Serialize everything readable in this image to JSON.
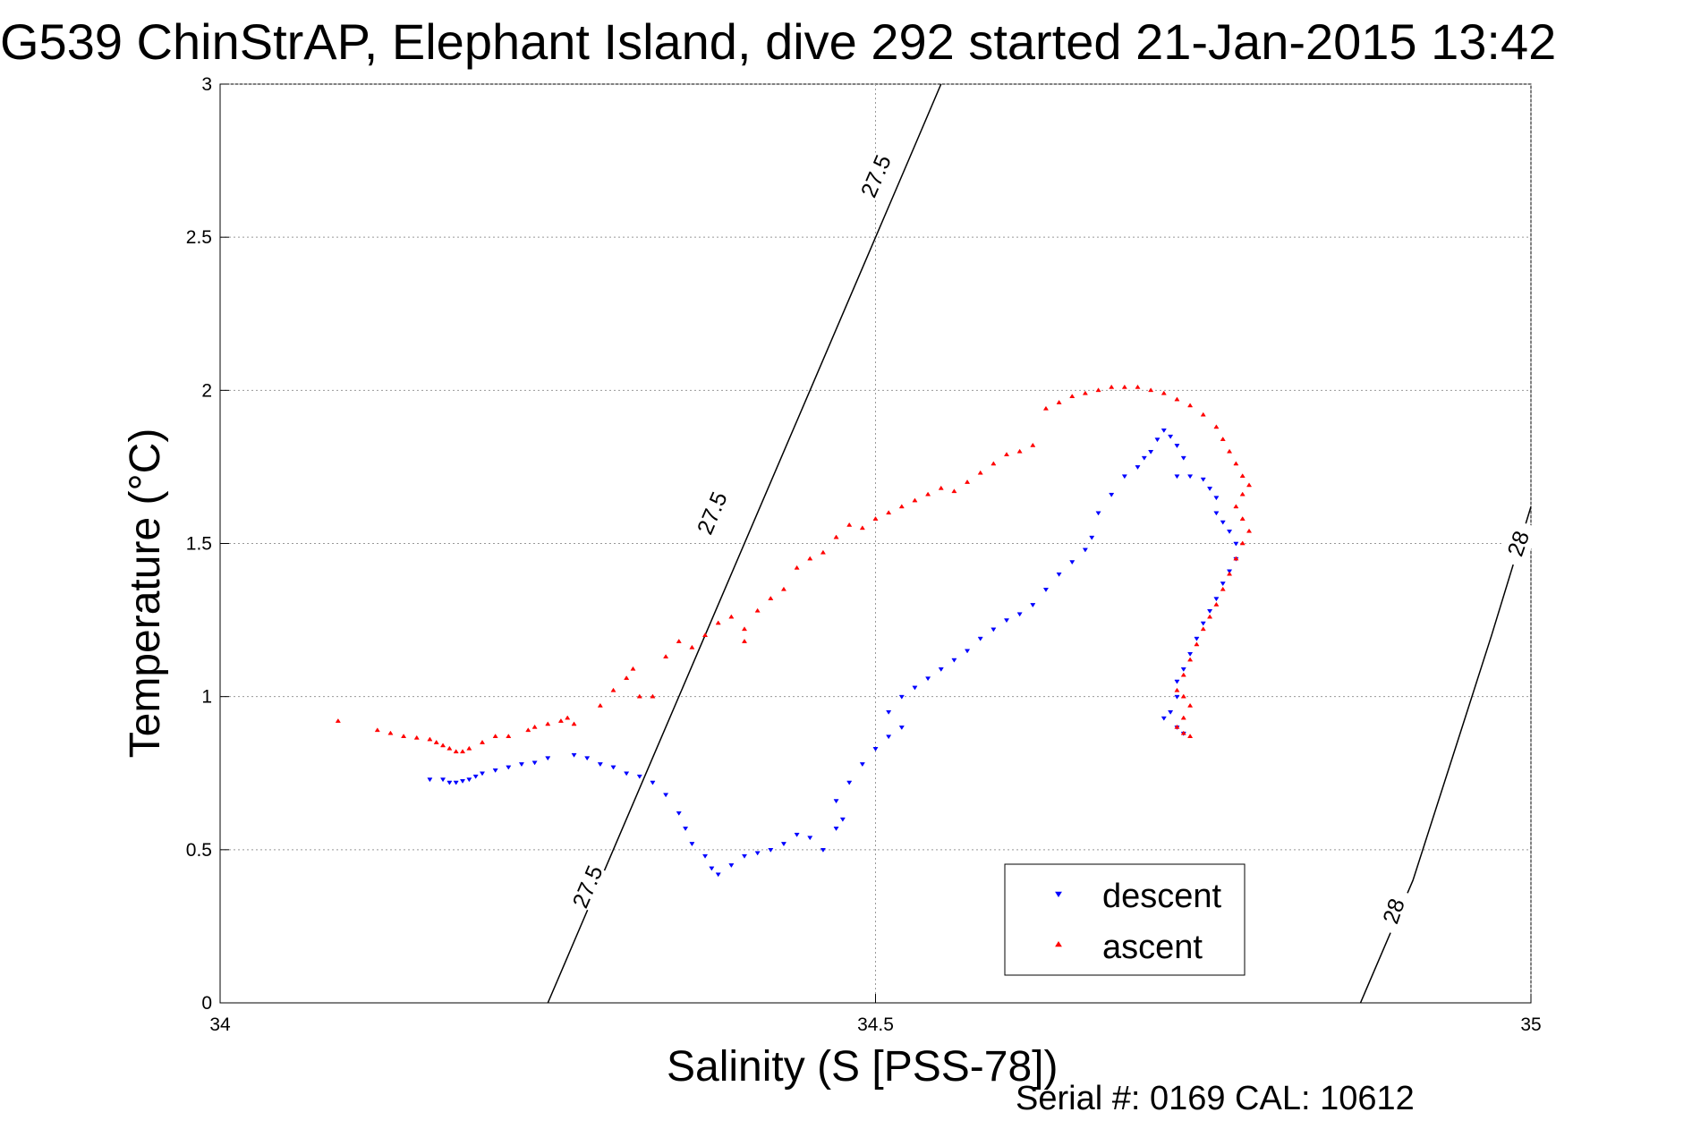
{
  "chart_data": {
    "type": "scatter",
    "title": "G539 ChinStrAP, Elephant Island, dive 292 started 21-Jan-2015 13:42",
    "xlabel": "Salinity (S [PSS-78])",
    "ylabel": "Temperature (°C)",
    "xlim": [
      34,
      35
    ],
    "ylim": [
      0,
      3
    ],
    "xticks": [
      34,
      34.5,
      35
    ],
    "xtick_labels": [
      "34",
      "34.5",
      "35"
    ],
    "yticks": [
      0,
      0.5,
      1,
      1.5,
      2,
      2.5,
      3
    ],
    "ytick_labels": [
      "0",
      "0.5",
      "1",
      "1.5",
      "2",
      "2.5",
      "3"
    ],
    "grid": true,
    "legend_position": "bottom-right",
    "footer": "Serial #: 0169 CAL: 10612",
    "density_contours": [
      {
        "label": "27.5",
        "points": [
          [
            34.25,
            0
          ],
          [
            34.29,
            0.4
          ],
          [
            34.33,
            0.8
          ],
          [
            34.37,
            1.2
          ],
          [
            34.41,
            1.6
          ],
          [
            34.45,
            2.0
          ],
          [
            34.49,
            2.4
          ],
          [
            34.53,
            2.8
          ],
          [
            34.55,
            3.0
          ]
        ],
        "label_positions": [
          [
            34.28,
            0.38
          ],
          [
            34.375,
            1.6
          ],
          [
            34.5,
            2.7
          ]
        ]
      },
      {
        "label": "28",
        "points": [
          [
            34.87,
            0
          ],
          [
            34.91,
            0.4
          ],
          [
            34.94,
            0.8
          ],
          [
            34.97,
            1.2
          ],
          [
            35.0,
            1.62
          ]
        ],
        "label_positions": [
          [
            34.895,
            0.3
          ],
          [
            34.99,
            1.5
          ]
        ]
      }
    ],
    "series": [
      {
        "name": "descent",
        "color": "#0000ff",
        "marker": "triangle-down",
        "points": [
          [
            34.16,
            0.73
          ],
          [
            34.17,
            0.73
          ],
          [
            34.175,
            0.72
          ],
          [
            34.18,
            0.72
          ],
          [
            34.185,
            0.725
          ],
          [
            34.19,
            0.73
          ],
          [
            34.195,
            0.74
          ],
          [
            34.2,
            0.75
          ],
          [
            34.21,
            0.76
          ],
          [
            34.22,
            0.77
          ],
          [
            34.23,
            0.78
          ],
          [
            34.24,
            0.785
          ],
          [
            34.25,
            0.8
          ],
          [
            34.27,
            0.81
          ],
          [
            34.28,
            0.8
          ],
          [
            34.29,
            0.78
          ],
          [
            34.3,
            0.77
          ],
          [
            34.31,
            0.75
          ],
          [
            34.32,
            0.74
          ],
          [
            34.33,
            0.72
          ],
          [
            34.34,
            0.68
          ],
          [
            34.35,
            0.62
          ],
          [
            34.355,
            0.57
          ],
          [
            34.36,
            0.52
          ],
          [
            34.37,
            0.48
          ],
          [
            34.375,
            0.44
          ],
          [
            34.38,
            0.42
          ],
          [
            34.39,
            0.45
          ],
          [
            34.4,
            0.48
          ],
          [
            34.41,
            0.49
          ],
          [
            34.42,
            0.5
          ],
          [
            34.43,
            0.52
          ],
          [
            34.44,
            0.55
          ],
          [
            34.45,
            0.54
          ],
          [
            34.46,
            0.5
          ],
          [
            34.47,
            0.57
          ],
          [
            34.475,
            0.6
          ],
          [
            34.47,
            0.66
          ],
          [
            34.48,
            0.72
          ],
          [
            34.49,
            0.78
          ],
          [
            34.5,
            0.83
          ],
          [
            34.51,
            0.87
          ],
          [
            34.52,
            0.9
          ],
          [
            34.51,
            0.95
          ],
          [
            34.52,
            1.0
          ],
          [
            34.53,
            1.03
          ],
          [
            34.54,
            1.06
          ],
          [
            34.55,
            1.09
          ],
          [
            34.56,
            1.12
          ],
          [
            34.57,
            1.15
          ],
          [
            34.58,
            1.19
          ],
          [
            34.59,
            1.22
          ],
          [
            34.6,
            1.25
          ],
          [
            34.61,
            1.27
          ],
          [
            34.62,
            1.3
          ],
          [
            34.63,
            1.35
          ],
          [
            34.64,
            1.4
          ],
          [
            34.65,
            1.44
          ],
          [
            34.66,
            1.48
          ],
          [
            34.665,
            1.52
          ],
          [
            34.67,
            1.6
          ],
          [
            34.68,
            1.66
          ],
          [
            34.69,
            1.72
          ],
          [
            34.7,
            1.75
          ],
          [
            34.705,
            1.78
          ],
          [
            34.71,
            1.8
          ],
          [
            34.715,
            1.84
          ],
          [
            34.72,
            1.87
          ],
          [
            34.725,
            1.85
          ],
          [
            34.73,
            1.82
          ],
          [
            34.735,
            1.78
          ],
          [
            34.73,
            1.72
          ],
          [
            34.74,
            1.72
          ],
          [
            34.75,
            1.71
          ],
          [
            34.755,
            1.68
          ],
          [
            34.76,
            1.65
          ],
          [
            34.76,
            1.6
          ],
          [
            34.765,
            1.57
          ],
          [
            34.77,
            1.54
          ],
          [
            34.775,
            1.5
          ],
          [
            34.775,
            1.45
          ],
          [
            34.77,
            1.41
          ],
          [
            34.765,
            1.37
          ],
          [
            34.76,
            1.32
          ],
          [
            34.755,
            1.28
          ],
          [
            34.75,
            1.24
          ],
          [
            34.745,
            1.19
          ],
          [
            34.74,
            1.14
          ],
          [
            34.735,
            1.09
          ],
          [
            34.73,
            1.05
          ],
          [
            34.73,
            1.0
          ],
          [
            34.725,
            0.95
          ],
          [
            34.72,
            0.93
          ],
          [
            34.73,
            0.9
          ],
          [
            34.735,
            0.88
          ]
        ]
      },
      {
        "name": "ascent",
        "color": "#ff0000",
        "marker": "triangle-up",
        "points": [
          [
            34.09,
            0.92
          ],
          [
            34.12,
            0.89
          ],
          [
            34.13,
            0.88
          ],
          [
            34.14,
            0.87
          ],
          [
            34.15,
            0.865
          ],
          [
            34.16,
            0.86
          ],
          [
            34.165,
            0.85
          ],
          [
            34.17,
            0.84
          ],
          [
            34.175,
            0.83
          ],
          [
            34.18,
            0.82
          ],
          [
            34.185,
            0.82
          ],
          [
            34.19,
            0.83
          ],
          [
            34.2,
            0.85
          ],
          [
            34.21,
            0.87
          ],
          [
            34.22,
            0.87
          ],
          [
            34.235,
            0.89
          ],
          [
            34.24,
            0.9
          ],
          [
            34.25,
            0.91
          ],
          [
            34.26,
            0.92
          ],
          [
            34.265,
            0.93
          ],
          [
            34.27,
            0.91
          ],
          [
            34.29,
            0.97
          ],
          [
            34.3,
            1.02
          ],
          [
            34.31,
            1.06
          ],
          [
            34.315,
            1.09
          ],
          [
            34.32,
            1.0
          ],
          [
            34.33,
            1.0
          ],
          [
            34.34,
            1.13
          ],
          [
            34.35,
            1.18
          ],
          [
            34.36,
            1.16
          ],
          [
            34.37,
            1.2
          ],
          [
            34.38,
            1.24
          ],
          [
            34.39,
            1.26
          ],
          [
            34.4,
            1.22
          ],
          [
            34.4,
            1.18
          ],
          [
            34.41,
            1.28
          ],
          [
            34.42,
            1.32
          ],
          [
            34.43,
            1.35
          ],
          [
            34.44,
            1.42
          ],
          [
            34.45,
            1.45
          ],
          [
            34.46,
            1.47
          ],
          [
            34.47,
            1.52
          ],
          [
            34.48,
            1.56
          ],
          [
            34.49,
            1.55
          ],
          [
            34.5,
            1.58
          ],
          [
            34.51,
            1.6
          ],
          [
            34.52,
            1.62
          ],
          [
            34.53,
            1.64
          ],
          [
            34.54,
            1.66
          ],
          [
            34.55,
            1.68
          ],
          [
            34.56,
            1.67
          ],
          [
            34.57,
            1.7
          ],
          [
            34.58,
            1.73
          ],
          [
            34.59,
            1.76
          ],
          [
            34.6,
            1.79
          ],
          [
            34.61,
            1.8
          ],
          [
            34.62,
            1.82
          ],
          [
            34.63,
            1.94
          ],
          [
            34.64,
            1.96
          ],
          [
            34.65,
            1.98
          ],
          [
            34.66,
            1.99
          ],
          [
            34.67,
            2.0
          ],
          [
            34.68,
            2.01
          ],
          [
            34.69,
            2.01
          ],
          [
            34.7,
            2.01
          ],
          [
            34.71,
            2.0
          ],
          [
            34.72,
            1.99
          ],
          [
            34.73,
            1.97
          ],
          [
            34.74,
            1.95
          ],
          [
            34.75,
            1.92
          ],
          [
            34.76,
            1.88
          ],
          [
            34.765,
            1.84
          ],
          [
            34.77,
            1.8
          ],
          [
            34.775,
            1.76
          ],
          [
            34.78,
            1.72
          ],
          [
            34.785,
            1.69
          ],
          [
            34.78,
            1.66
          ],
          [
            34.775,
            1.62
          ],
          [
            34.78,
            1.58
          ],
          [
            34.785,
            1.54
          ],
          [
            34.78,
            1.5
          ],
          [
            34.775,
            1.45
          ],
          [
            34.77,
            1.4
          ],
          [
            34.765,
            1.35
          ],
          [
            34.76,
            1.3
          ],
          [
            34.755,
            1.26
          ],
          [
            34.75,
            1.22
          ],
          [
            34.745,
            1.17
          ],
          [
            34.74,
            1.12
          ],
          [
            34.735,
            1.07
          ],
          [
            34.73,
            1.02
          ],
          [
            34.735,
            1.0
          ],
          [
            34.74,
            0.97
          ],
          [
            34.735,
            0.93
          ],
          [
            34.73,
            0.9
          ],
          [
            34.735,
            0.88
          ],
          [
            34.74,
            0.87
          ]
        ]
      }
    ]
  }
}
